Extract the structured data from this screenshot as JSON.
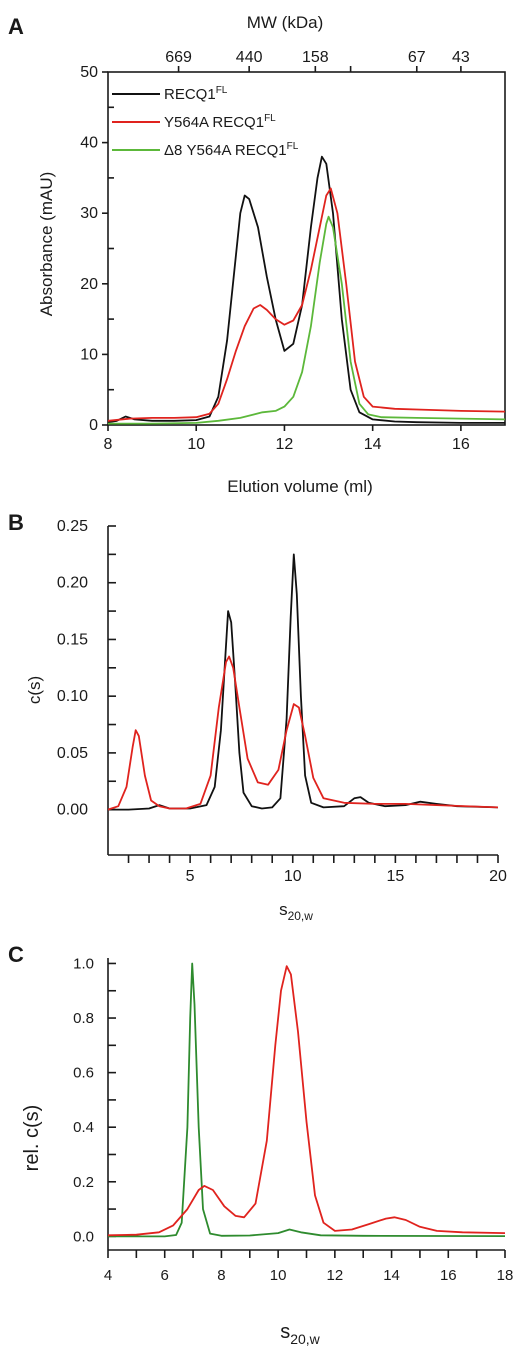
{
  "chart_data": [
    {
      "panel": "A",
      "type": "line",
      "xlabel": "Elution volume (ml)",
      "ylabel": "Absorbance (mAU)",
      "top_axis_label": "MW (kDa)",
      "xlim": [
        8,
        17
      ],
      "ylim": [
        0,
        50
      ],
      "x_ticks": [
        8,
        10,
        12,
        14,
        16
      ],
      "y_ticks": [
        0,
        10,
        20,
        30,
        40,
        50
      ],
      "top_ticks": [
        {
          "x": 9.6,
          "label": "669"
        },
        {
          "x": 11.2,
          "label": "440"
        },
        {
          "x": 12.7,
          "label": "158"
        },
        {
          "x": 13.5,
          "label": ""
        },
        {
          "x": 15.0,
          "label": "67"
        },
        {
          "x": 16.0,
          "label": "43"
        }
      ],
      "legend": "top-left",
      "series": [
        {
          "name": "RECQ1",
          "name_sup": "FL",
          "color": "#111111",
          "points": [
            [
              8.0,
              0.4
            ],
            [
              8.2,
              0.6
            ],
            [
              8.4,
              1.2
            ],
            [
              8.6,
              0.8
            ],
            [
              9.0,
              0.6
            ],
            [
              9.5,
              0.6
            ],
            [
              10.0,
              0.7
            ],
            [
              10.3,
              1.2
            ],
            [
              10.5,
              4.0
            ],
            [
              10.7,
              12.0
            ],
            [
              10.9,
              24.0
            ],
            [
              11.0,
              30.0
            ],
            [
              11.1,
              32.5
            ],
            [
              11.2,
              32.0
            ],
            [
              11.4,
              28.0
            ],
            [
              11.6,
              21.0
            ],
            [
              11.8,
              15.0
            ],
            [
              12.0,
              10.5
            ],
            [
              12.2,
              11.5
            ],
            [
              12.4,
              17.0
            ],
            [
              12.6,
              28.0
            ],
            [
              12.75,
              35.0
            ],
            [
              12.85,
              38.0
            ],
            [
              12.95,
              37.0
            ],
            [
              13.1,
              30.0
            ],
            [
              13.3,
              15.0
            ],
            [
              13.5,
              5.0
            ],
            [
              13.7,
              1.8
            ],
            [
              14.0,
              0.8
            ],
            [
              14.5,
              0.5
            ],
            [
              15.0,
              0.4
            ],
            [
              16.0,
              0.3
            ],
            [
              17.0,
              0.3
            ]
          ]
        },
        {
          "name": "Y564A RECQ1",
          "name_sup": "FL",
          "color": "#e0231e",
          "points": [
            [
              8.0,
              0.6
            ],
            [
              8.5,
              0.9
            ],
            [
              9.0,
              1.0
            ],
            [
              9.5,
              1.0
            ],
            [
              10.0,
              1.1
            ],
            [
              10.3,
              1.6
            ],
            [
              10.5,
              3.0
            ],
            [
              10.7,
              6.5
            ],
            [
              10.9,
              10.5
            ],
            [
              11.1,
              14.0
            ],
            [
              11.3,
              16.5
            ],
            [
              11.45,
              17.0
            ],
            [
              11.6,
              16.3
            ],
            [
              11.8,
              15.0
            ],
            [
              12.0,
              14.2
            ],
            [
              12.2,
              14.8
            ],
            [
              12.4,
              17.0
            ],
            [
              12.6,
              22.0
            ],
            [
              12.8,
              28.0
            ],
            [
              12.95,
              32.5
            ],
            [
              13.05,
              33.5
            ],
            [
              13.2,
              30.0
            ],
            [
              13.4,
              20.0
            ],
            [
              13.6,
              9.0
            ],
            [
              13.8,
              4.0
            ],
            [
              14.0,
              2.6
            ],
            [
              14.5,
              2.3
            ],
            [
              15.0,
              2.2
            ],
            [
              16.0,
              2.0
            ],
            [
              17.0,
              1.9
            ]
          ]
        },
        {
          "name": "Δ8 Y564A RECQ1",
          "name_sup": "FL",
          "color": "#5cb83a",
          "points": [
            [
              8.0,
              0.2
            ],
            [
              9.0,
              0.2
            ],
            [
              10.0,
              0.3
            ],
            [
              10.5,
              0.6
            ],
            [
              11.0,
              1.0
            ],
            [
              11.5,
              1.8
            ],
            [
              11.8,
              2.0
            ],
            [
              12.0,
              2.6
            ],
            [
              12.2,
              4.0
            ],
            [
              12.4,
              7.5
            ],
            [
              12.6,
              14.0
            ],
            [
              12.8,
              23.0
            ],
            [
              12.95,
              28.5
            ],
            [
              13.0,
              29.5
            ],
            [
              13.1,
              28.0
            ],
            [
              13.3,
              20.0
            ],
            [
              13.5,
              9.0
            ],
            [
              13.7,
              3.0
            ],
            [
              13.9,
              1.5
            ],
            [
              14.2,
              1.1
            ],
            [
              15.0,
              1.0
            ],
            [
              16.0,
              0.9
            ],
            [
              17.0,
              0.8
            ]
          ]
        }
      ]
    },
    {
      "panel": "B",
      "type": "line",
      "xlabel": "s",
      "xlabel_sub": "20,w",
      "ylabel": "c(s)",
      "xlim": [
        1,
        20
      ],
      "ylim": [
        -0.04,
        0.25
      ],
      "x_ticks": [
        5,
        10,
        15,
        20
      ],
      "y_ticks": [
        0.0,
        0.05,
        0.1,
        0.15,
        0.2,
        0.25
      ],
      "y_tick_labels": [
        "0.00",
        "0.05",
        "0.10",
        "0.15",
        "0.20",
        "0.25"
      ],
      "series": [
        {
          "name": "",
          "color": "#111111",
          "points": [
            [
              1.0,
              0.0
            ],
            [
              2.0,
              0.0
            ],
            [
              3.0,
              0.001
            ],
            [
              3.5,
              0.004
            ],
            [
              4.0,
              0.001
            ],
            [
              5.0,
              0.001
            ],
            [
              5.8,
              0.004
            ],
            [
              6.2,
              0.02
            ],
            [
              6.5,
              0.07
            ],
            [
              6.7,
              0.13
            ],
            [
              6.85,
              0.175
            ],
            [
              7.0,
              0.165
            ],
            [
              7.2,
              0.11
            ],
            [
              7.4,
              0.05
            ],
            [
              7.6,
              0.015
            ],
            [
              8.0,
              0.003
            ],
            [
              8.5,
              0.001
            ],
            [
              9.0,
              0.002
            ],
            [
              9.4,
              0.01
            ],
            [
              9.7,
              0.08
            ],
            [
              9.9,
              0.17
            ],
            [
              10.05,
              0.225
            ],
            [
              10.2,
              0.19
            ],
            [
              10.4,
              0.1
            ],
            [
              10.6,
              0.03
            ],
            [
              10.9,
              0.006
            ],
            [
              11.5,
              0.002
            ],
            [
              12.5,
              0.003
            ],
            [
              13.0,
              0.01
            ],
            [
              13.3,
              0.011
            ],
            [
              13.7,
              0.006
            ],
            [
              14.5,
              0.003
            ],
            [
              15.5,
              0.004
            ],
            [
              16.2,
              0.007
            ],
            [
              17.0,
              0.005
            ],
            [
              18.0,
              0.003
            ],
            [
              20.0,
              0.002
            ]
          ]
        },
        {
          "name": "",
          "color": "#e0231e",
          "points": [
            [
              1.0,
              0.0
            ],
            [
              1.5,
              0.003
            ],
            [
              1.9,
              0.02
            ],
            [
              2.2,
              0.055
            ],
            [
              2.35,
              0.07
            ],
            [
              2.5,
              0.065
            ],
            [
              2.8,
              0.03
            ],
            [
              3.1,
              0.008
            ],
            [
              3.5,
              0.003
            ],
            [
              4.0,
              0.001
            ],
            [
              4.8,
              0.001
            ],
            [
              5.5,
              0.005
            ],
            [
              6.0,
              0.03
            ],
            [
              6.4,
              0.09
            ],
            [
              6.75,
              0.13
            ],
            [
              6.9,
              0.135
            ],
            [
              7.1,
              0.125
            ],
            [
              7.4,
              0.09
            ],
            [
              7.8,
              0.045
            ],
            [
              8.3,
              0.024
            ],
            [
              8.8,
              0.022
            ],
            [
              9.3,
              0.035
            ],
            [
              9.7,
              0.07
            ],
            [
              10.05,
              0.093
            ],
            [
              10.3,
              0.09
            ],
            [
              10.6,
              0.065
            ],
            [
              11.0,
              0.028
            ],
            [
              11.5,
              0.01
            ],
            [
              12.5,
              0.006
            ],
            [
              14.0,
              0.005
            ],
            [
              15.5,
              0.005
            ],
            [
              17.0,
              0.004
            ],
            [
              20.0,
              0.002
            ]
          ]
        }
      ]
    },
    {
      "panel": "C",
      "type": "line",
      "xlabel": "s",
      "xlabel_sub": "20,w",
      "ylabel": "rel. c(s)",
      "xlim": [
        4,
        18
      ],
      "ylim": [
        -0.05,
        1.02
      ],
      "x_ticks": [
        4,
        6,
        8,
        10,
        12,
        14,
        16,
        18
      ],
      "y_ticks": [
        0.0,
        0.2,
        0.4,
        0.6,
        0.8,
        1.0
      ],
      "y_tick_labels": [
        "0.0",
        "0.2",
        "0.4",
        "0.6",
        "0.8",
        "1.0"
      ],
      "series": [
        {
          "name": "",
          "color": "#2e8b2e",
          "points": [
            [
              4.0,
              0.0
            ],
            [
              6.0,
              0.0
            ],
            [
              6.4,
              0.005
            ],
            [
              6.6,
              0.05
            ],
            [
              6.8,
              0.4
            ],
            [
              6.9,
              0.8
            ],
            [
              6.97,
              1.0
            ],
            [
              7.05,
              0.85
            ],
            [
              7.2,
              0.4
            ],
            [
              7.35,
              0.1
            ],
            [
              7.6,
              0.01
            ],
            [
              8.0,
              0.002
            ],
            [
              9.0,
              0.003
            ],
            [
              10.0,
              0.012
            ],
            [
              10.4,
              0.025
            ],
            [
              10.8,
              0.015
            ],
            [
              11.5,
              0.004
            ],
            [
              13.0,
              0.002
            ],
            [
              18.0,
              0.001
            ]
          ]
        },
        {
          "name": "",
          "color": "#e0231e",
          "points": [
            [
              4.0,
              0.004
            ],
            [
              5.0,
              0.006
            ],
            [
              5.8,
              0.015
            ],
            [
              6.3,
              0.04
            ],
            [
              6.8,
              0.1
            ],
            [
              7.2,
              0.17
            ],
            [
              7.4,
              0.185
            ],
            [
              7.7,
              0.17
            ],
            [
              8.1,
              0.11
            ],
            [
              8.5,
              0.075
            ],
            [
              8.8,
              0.07
            ],
            [
              9.2,
              0.12
            ],
            [
              9.6,
              0.35
            ],
            [
              9.9,
              0.7
            ],
            [
              10.1,
              0.9
            ],
            [
              10.3,
              0.99
            ],
            [
              10.45,
              0.96
            ],
            [
              10.7,
              0.75
            ],
            [
              11.0,
              0.42
            ],
            [
              11.3,
              0.15
            ],
            [
              11.6,
              0.05
            ],
            [
              12.0,
              0.02
            ],
            [
              12.6,
              0.025
            ],
            [
              13.2,
              0.045
            ],
            [
              13.8,
              0.065
            ],
            [
              14.1,
              0.07
            ],
            [
              14.5,
              0.06
            ],
            [
              15.0,
              0.035
            ],
            [
              15.6,
              0.02
            ],
            [
              16.5,
              0.015
            ],
            [
              18.0,
              0.012
            ]
          ]
        }
      ]
    }
  ],
  "panels": {
    "a": {
      "letter": "A",
      "top_axis_label": "MW (kDa)",
      "xlabel": "Elution volume (ml)",
      "ylabel": "Absorbance (mAU)"
    },
    "b": {
      "letter": "B",
      "ylabel": "c(s)",
      "xlabel": "s",
      "xlabel_sub": "20,w"
    },
    "c": {
      "letter": "C",
      "ylabel": "rel. c(s)",
      "xlabel": "s",
      "xlabel_sub": "20,w"
    }
  }
}
